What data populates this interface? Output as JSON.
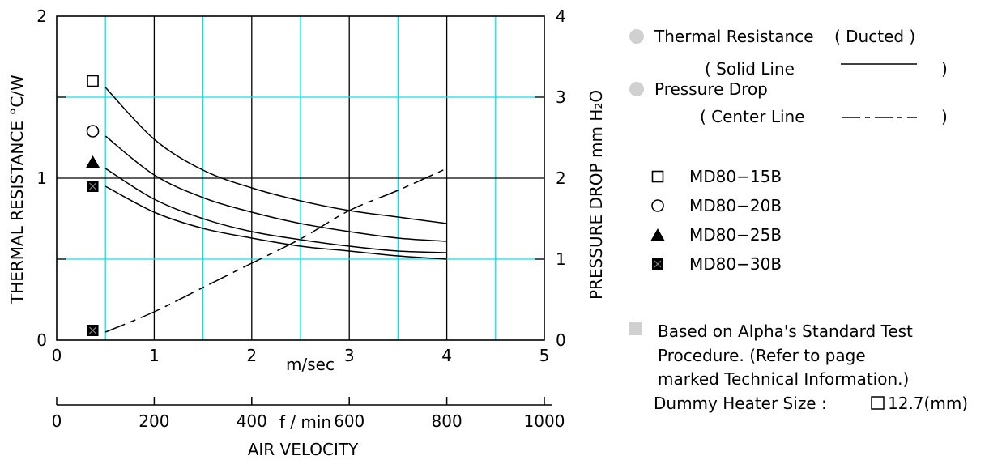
{
  "chart_data": {
    "type": "line",
    "title": "",
    "x_axis": {
      "unit_label": "m/sec",
      "lim": [
        0,
        5
      ],
      "ticks": [
        "0",
        "1",
        "2",
        "3",
        "4",
        "5"
      ],
      "secondary_unit_label": "f / min",
      "secondary_lim": [
        0,
        1000
      ],
      "secondary_ticks": [
        "0",
        "200",
        "400",
        "600",
        "800",
        "1000"
      ],
      "caption": "AIR VELOCITY"
    },
    "y_left": {
      "label": "THERMAL  RESISTANCE  °C/W",
      "lim": [
        0,
        2
      ],
      "ticks": [
        "0",
        "1",
        "2"
      ]
    },
    "y_right": {
      "label": "PRESSURE  DROP mm H₂O",
      "lim": [
        0,
        4
      ],
      "ticks": [
        "0",
        "1",
        "2",
        "3",
        "4"
      ]
    },
    "grid": true,
    "series": [
      {
        "name": "MD80-15B",
        "axis": "left",
        "style": "solid",
        "marker": "square-open",
        "x": [
          0.5,
          1.0,
          1.5,
          2.0,
          2.5,
          3.0,
          3.5,
          4.0
        ],
        "y": [
          1.56,
          1.24,
          1.05,
          0.94,
          0.86,
          0.8,
          0.76,
          0.72
        ]
      },
      {
        "name": "MD80-20B",
        "axis": "left",
        "style": "solid",
        "marker": "circle-open",
        "x": [
          0.5,
          1.0,
          1.5,
          2.0,
          2.5,
          3.0,
          3.5,
          4.0
        ],
        "y": [
          1.26,
          1.02,
          0.88,
          0.79,
          0.72,
          0.67,
          0.63,
          0.61
        ]
      },
      {
        "name": "MD80-25B",
        "axis": "left",
        "style": "solid",
        "marker": "triangle-filled",
        "x": [
          0.5,
          1.0,
          1.5,
          2.0,
          2.5,
          3.0,
          3.5,
          4.0
        ],
        "y": [
          1.06,
          0.87,
          0.75,
          0.67,
          0.62,
          0.58,
          0.55,
          0.54
        ]
      },
      {
        "name": "MD80-30B",
        "axis": "left",
        "style": "solid",
        "marker": "square-filled",
        "x": [
          0.5,
          1.0,
          1.5,
          2.0,
          2.5,
          3.0,
          3.5,
          4.0
        ],
        "y": [
          0.95,
          0.79,
          0.69,
          0.63,
          0.58,
          0.55,
          0.52,
          0.5
        ]
      },
      {
        "name": "Pressure Drop",
        "axis": "right",
        "style": "center-line",
        "x": [
          0.5,
          1.0,
          1.5,
          2.0,
          2.5,
          3.0,
          3.5,
          4.0
        ],
        "y": [
          0.1,
          0.35,
          0.65,
          0.95,
          1.25,
          1.6,
          1.85,
          2.12
        ]
      }
    ],
    "start_markers": [
      {
        "marker": "square-open",
        "x": 0.37,
        "y": 1.6
      },
      {
        "marker": "circle-open",
        "x": 0.37,
        "y": 1.29
      },
      {
        "marker": "triangle-filled",
        "x": 0.37,
        "y": 1.1
      },
      {
        "marker": "square-filled",
        "x": 0.37,
        "y": 0.95
      },
      {
        "marker": "square-filled",
        "x": 0.37,
        "y": 0.06
      }
    ],
    "colors": {
      "grid_major": "#000000",
      "grid_minor": "#00e5ee",
      "line": "#000000",
      "bullet": "#d0d0d0"
    }
  },
  "legend": {
    "thermal_title": "Thermal Resistance",
    "thermal_note": "( Ducted )",
    "solid_line": "( Solid Line",
    "pressure_title": "Pressure Drop",
    "center_line": "( Center Line",
    "close_paren": ")",
    "models": [
      {
        "marker": "square-open",
        "label": "MD80−15B"
      },
      {
        "marker": "circle-open",
        "label": "MD80−20B"
      },
      {
        "marker": "triangle-filled",
        "label": "MD80−25B"
      },
      {
        "marker": "square-filled",
        "label": "MD80−30B"
      }
    ],
    "notes": [
      "Based on Alpha's Standard Test",
      "Procedure.  (Refer to page",
      "marked Technical Information.)"
    ],
    "heater": "Dummy Heater Size :",
    "heater_value": "12.7(mm)"
  }
}
